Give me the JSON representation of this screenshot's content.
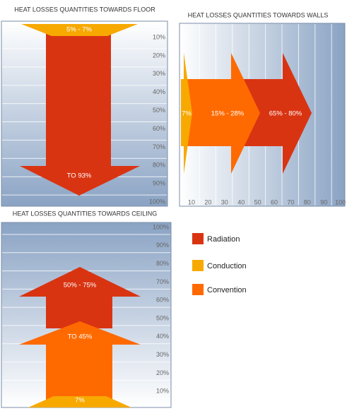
{
  "panels": [
    {
      "title": "HEAT LOSSES QUANTITIES TOWARDS FLOOR",
      "ticks": [
        "10%",
        "20%",
        "30%",
        "40%",
        "50%",
        "60%",
        "70%",
        "80%",
        "90%",
        "100%"
      ],
      "labels": [
        "5% - 7%",
        "TO 93%"
      ]
    },
    {
      "title": "HEAT LOSSES QUANTITIES TOWARDS WALLS",
      "ticks": [
        "10",
        "20",
        "30",
        "40",
        "50",
        "60",
        "70",
        "80",
        "90",
        "100"
      ],
      "labels": [
        "7%",
        "15% - 28%",
        "65% - 80%"
      ]
    },
    {
      "title": "HEAT LOSSES QUANTITIES TOWARDS CEILING",
      "ticks": [
        "100%",
        "90%",
        "80%",
        "70%",
        "60%",
        "50%",
        "40%",
        "30%",
        "20%",
        "10%"
      ],
      "labels": [
        "50% - 75%",
        "TO 45%",
        "7%"
      ]
    }
  ],
  "legend": [
    "Radiation",
    "Conduction",
    "Convention"
  ]
}
